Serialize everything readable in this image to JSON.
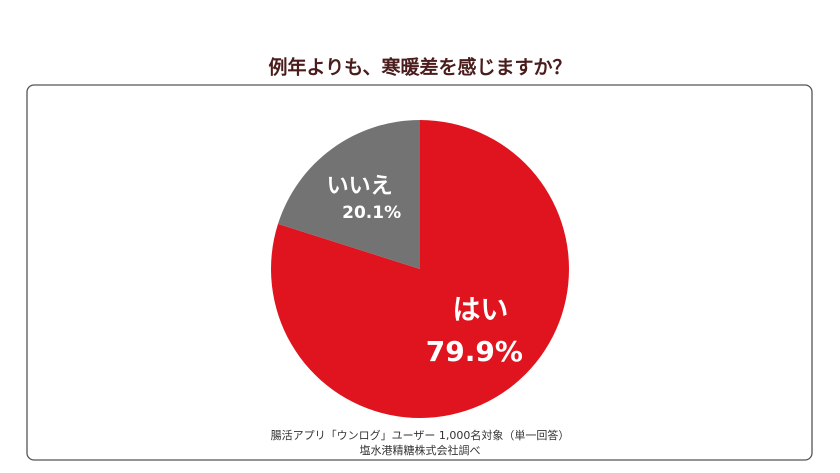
{
  "chart_data": {
    "type": "pie",
    "title": "例年よりも、寒暖差を感じますか？",
    "categories": [
      "はい",
      "いいえ"
    ],
    "values": [
      79.9,
      20.1
    ],
    "value_labels": [
      "79.9%",
      "20.1%"
    ],
    "colors": [
      "#e0141e",
      "#737373"
    ],
    "notes": [
      "腸活アプリ「ウンログ」ユーザー 1,000名対象（単一回答）",
      "塩水港精糖株式会社調べ"
    ]
  }
}
